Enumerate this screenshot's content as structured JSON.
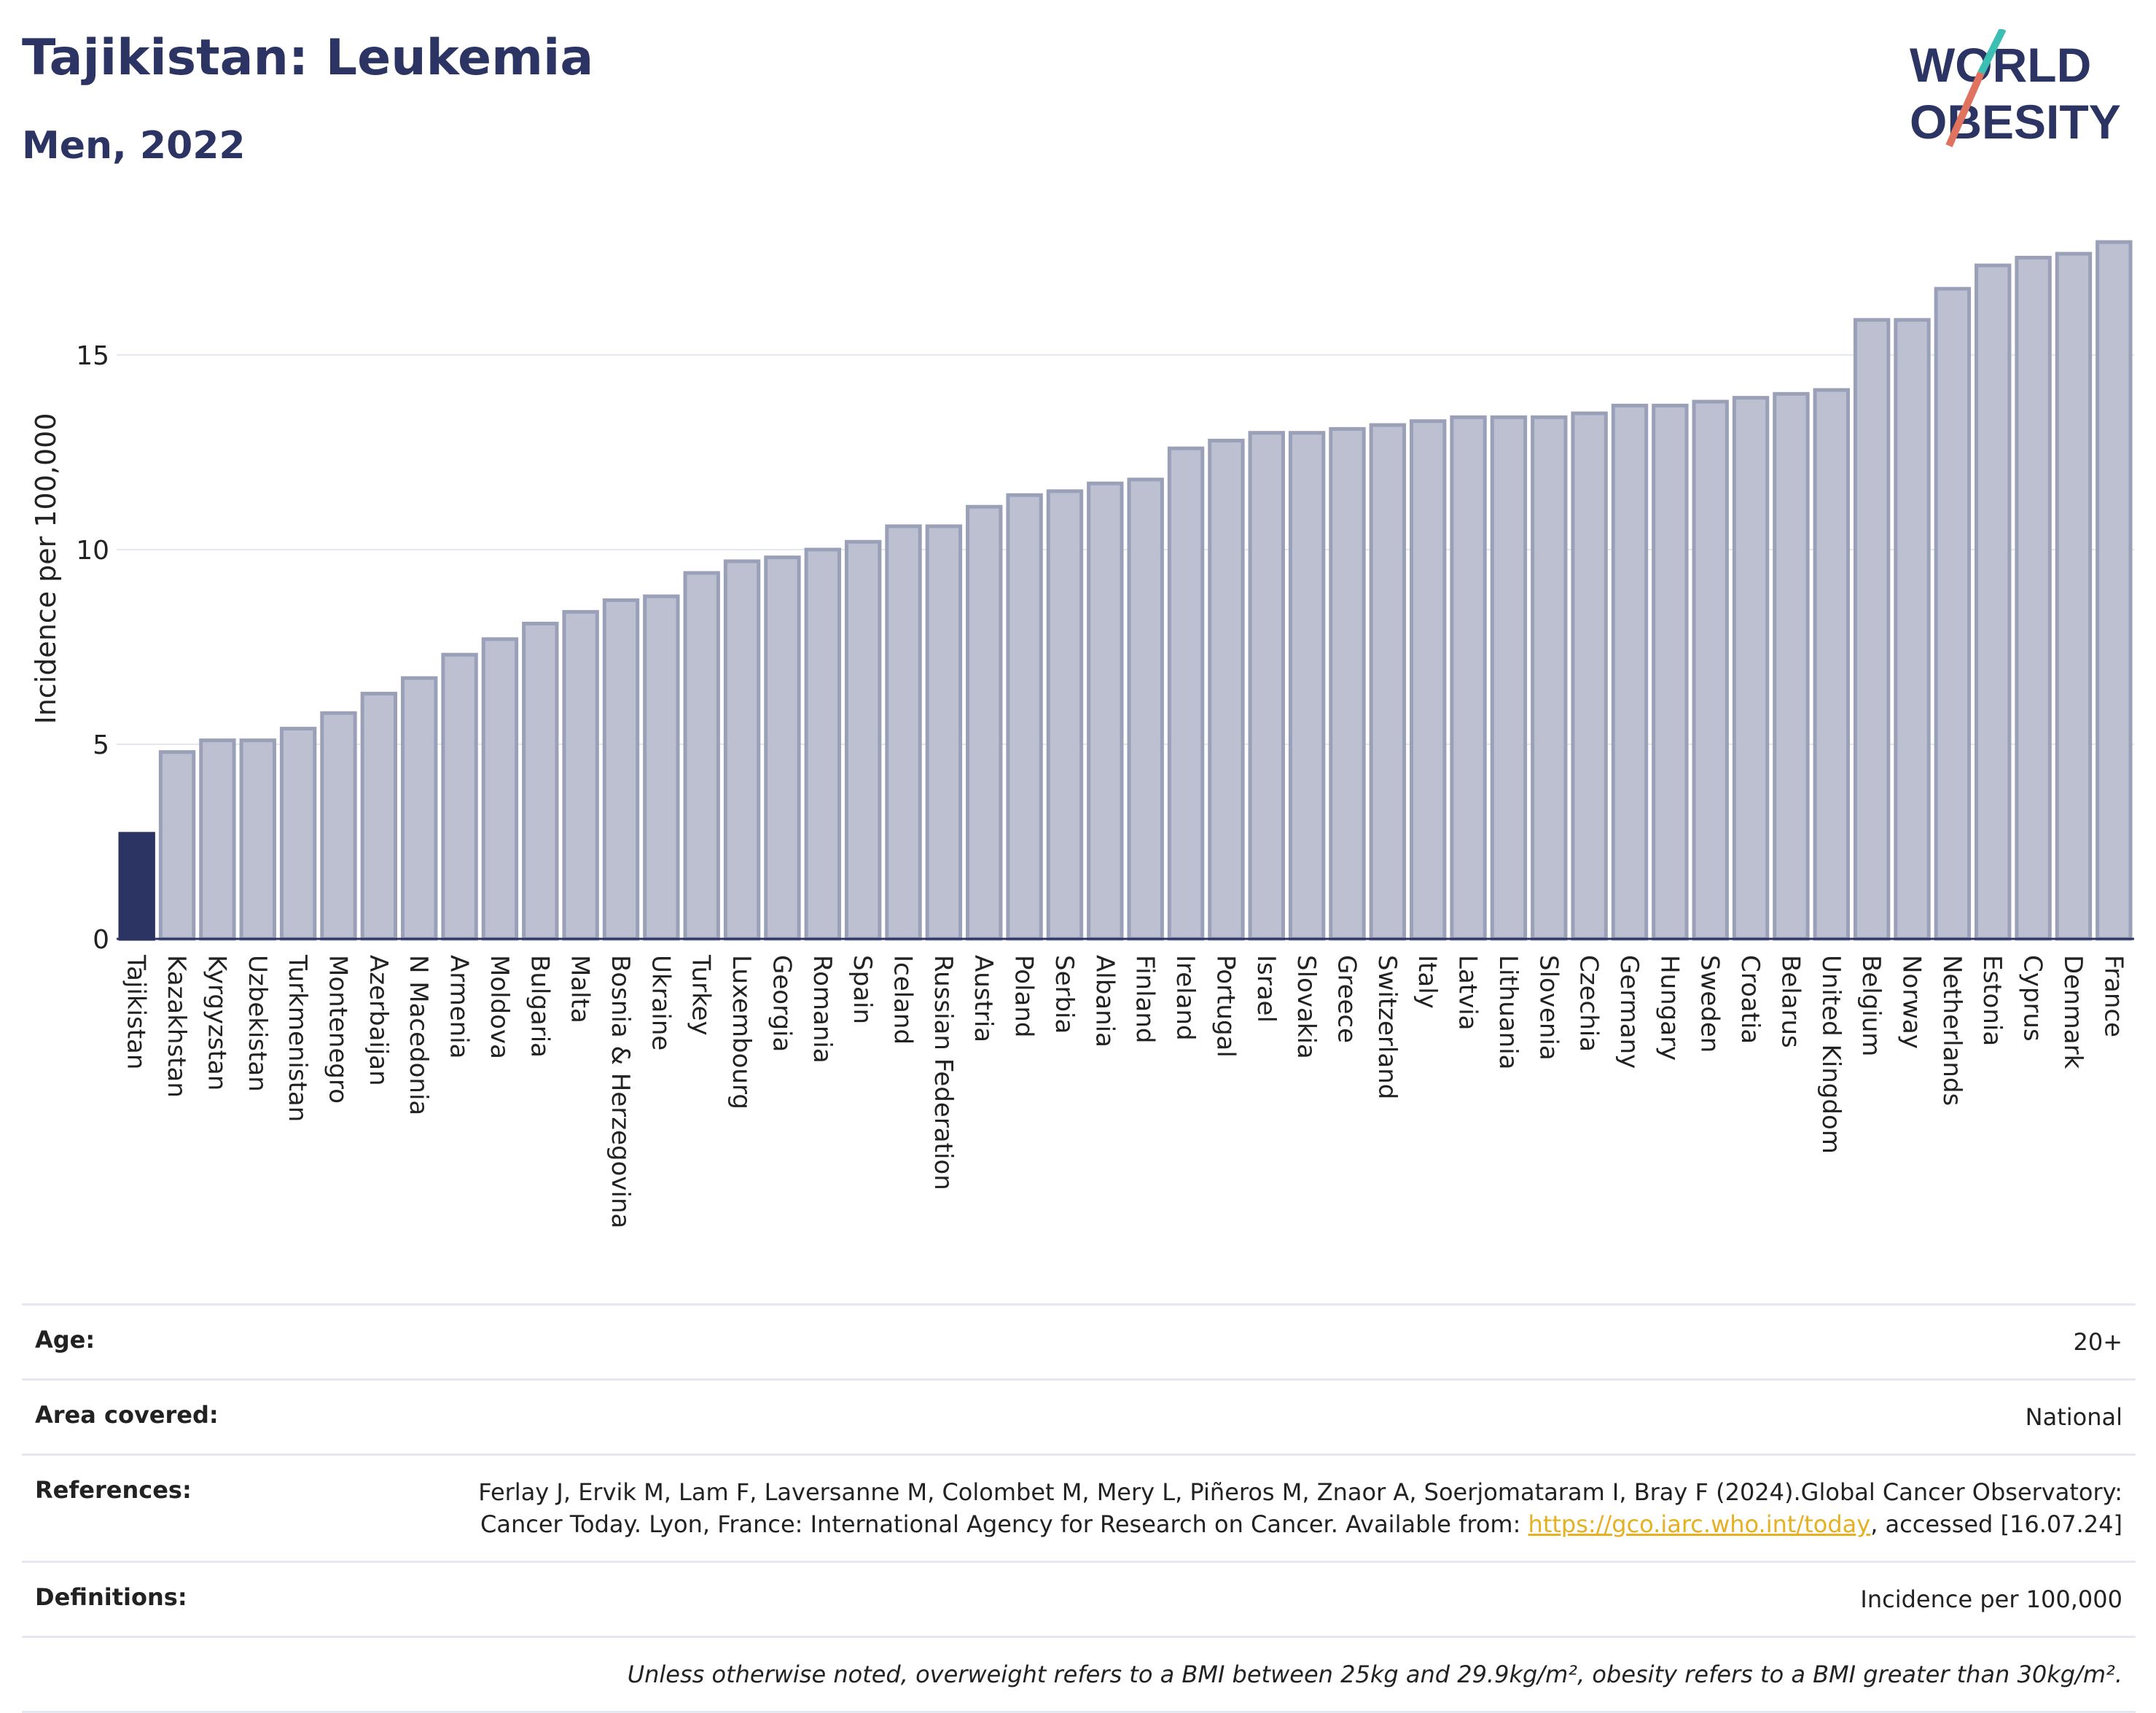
{
  "header": {
    "title": "Tajikistan: Leukemia",
    "subtitle": "Men, 2022",
    "logo_line1": "WORLD",
    "logo_line2": "OBESITY"
  },
  "colors": {
    "highlight_bar": "#2b3462",
    "bar": "#bcc0d0",
    "bar_border": "#9aa0b8",
    "logo_teal": "#3cbfb3",
    "logo_coral": "#e0735f",
    "link": "#e6b021"
  },
  "chart_data": {
    "type": "bar",
    "ylabel": "Incidence per 100,000",
    "ylim": [
      0,
      18.5
    ],
    "yticks": [
      0,
      5,
      10,
      15
    ],
    "grid": true,
    "highlight": "Tajikistan",
    "categories": [
      "Tajikistan",
      "Kazakhstan",
      "Kyrgyzstan",
      "Uzbekistan",
      "Turkmenistan",
      "Montenegro",
      "Azerbaijan",
      "N Macedonia",
      "Armenia",
      "Moldova",
      "Bulgaria",
      "Malta",
      "Bosnia & Herzegovina",
      "Ukraine",
      "Turkey",
      "Luxembourg",
      "Georgia",
      "Romania",
      "Spain",
      "Iceland",
      "Russian Federation",
      "Austria",
      "Poland",
      "Serbia",
      "Albania",
      "Finland",
      "Ireland",
      "Portugal",
      "Israel",
      "Slovakia",
      "Greece",
      "Switzerland",
      "Italy",
      "Latvia",
      "Lithuania",
      "Slovenia",
      "Czechia",
      "Germany",
      "Hungary",
      "Sweden",
      "Croatia",
      "Belarus",
      "United Kingdom",
      "Belgium",
      "Norway",
      "Netherlands",
      "Estonia",
      "Cyprus",
      "Denmark",
      "France"
    ],
    "values": [
      2.7,
      4.8,
      5.1,
      5.1,
      5.4,
      5.8,
      6.3,
      6.7,
      7.3,
      7.7,
      8.1,
      8.4,
      8.7,
      8.8,
      9.4,
      9.7,
      9.8,
      10.0,
      10.2,
      10.6,
      10.6,
      11.1,
      11.4,
      11.5,
      11.7,
      11.8,
      12.6,
      12.8,
      13.0,
      13.0,
      13.1,
      13.2,
      13.3,
      13.4,
      13.4,
      13.4,
      13.5,
      13.7,
      13.7,
      13.8,
      13.9,
      14.0,
      14.1,
      15.9,
      15.9,
      16.7,
      17.3,
      17.5,
      17.6,
      17.9
    ]
  },
  "meta": {
    "age_label": "Age:",
    "age_value": "20+",
    "area_label": "Area covered:",
    "area_value": "National",
    "references_label": "References:",
    "references_text": "Ferlay J, Ervik M, Lam F, Laversanne M, Colombet M, Mery L, Piñeros M, Znaor A, Soerjomataram I, Bray F (2024).Global Cancer Observatory: Cancer Today. Lyon, France: International Agency for Research on Cancer. Available from:",
    "references_link": "https://gco.iarc.who.int/today",
    "references_suffix": ", accessed [16.07.24]",
    "definitions_label": "Definitions:",
    "definitions_value": "Incidence per 100,000",
    "note": "Unless otherwise noted, overweight refers to a BMI between 25kg and 29.9kg/m², obesity refers to a BMI greater than 30kg/m²."
  }
}
